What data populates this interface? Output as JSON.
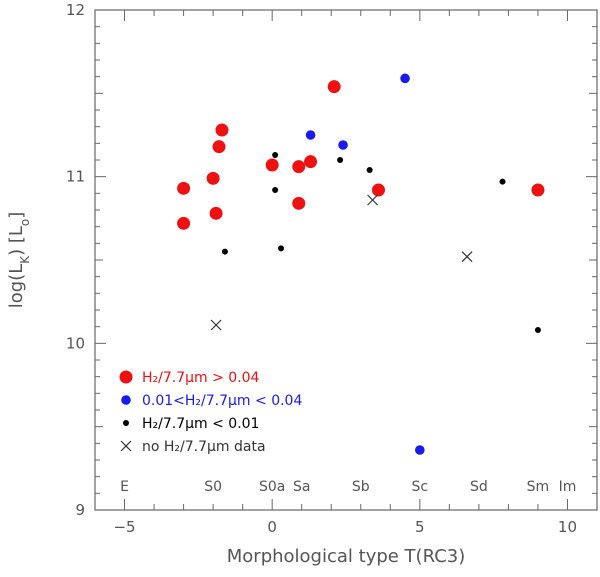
{
  "chart_data": {
    "type": "scatter",
    "xlabel": "Morphological type T(RC3)",
    "ylabel": "log(L_K) [L_o]",
    "xlim": [
      -6,
      11
    ],
    "ylim": [
      9,
      12
    ],
    "x_ticks": [
      "-5",
      "0",
      "5",
      "10"
    ],
    "y_ticks": [
      "9",
      "10",
      "11",
      "12"
    ],
    "grid": false,
    "legend_position": "bottom-left",
    "type_labels": [
      {
        "t": -5,
        "label": "E"
      },
      {
        "t": -2,
        "label": "S0"
      },
      {
        "t": 0,
        "label": "S0a"
      },
      {
        "t": 1,
        "label": "Sa"
      },
      {
        "t": 3,
        "label": "Sb"
      },
      {
        "t": 5,
        "label": "Sc"
      },
      {
        "t": 7,
        "label": "Sd"
      },
      {
        "t": 9,
        "label": "Sm"
      },
      {
        "t": 10,
        "label": "Im"
      }
    ],
    "series": [
      {
        "label_main": "H₂/7.7μm > 0.04",
        "marker": "large-circle",
        "color": "#ee1111",
        "points": [
          [
            -3.0,
            10.93
          ],
          [
            -3.0,
            10.72
          ],
          [
            -2.0,
            10.99
          ],
          [
            -1.9,
            10.78
          ],
          [
            -1.8,
            11.18
          ],
          [
            -1.7,
            11.28
          ],
          [
            0.0,
            11.07
          ],
          [
            0.9,
            11.06
          ],
          [
            0.9,
            10.84
          ],
          [
            1.3,
            11.09
          ],
          [
            2.1,
            11.54
          ],
          [
            3.6,
            10.92
          ],
          [
            9.0,
            10.92
          ]
        ]
      },
      {
        "label_main": "0.01<H₂/7.7μm < 0.04",
        "marker": "medium-circle",
        "color": "#1a1aee",
        "points": [
          [
            1.3,
            11.25
          ],
          [
            2.4,
            11.19
          ],
          [
            4.5,
            11.59
          ],
          [
            5.0,
            9.36
          ]
        ]
      },
      {
        "label_main": "H₂/7.7μm < 0.01",
        "marker": "small-dot",
        "color": "#000000",
        "points": [
          [
            -1.6,
            10.55
          ],
          [
            0.1,
            11.13
          ],
          [
            0.1,
            10.92
          ],
          [
            0.3,
            10.57
          ],
          [
            2.3,
            11.1
          ],
          [
            3.3,
            11.04
          ],
          [
            7.8,
            10.97
          ],
          [
            9.0,
            10.08
          ]
        ]
      },
      {
        "label_main": "no H₂/7.7μm data",
        "marker": "cross",
        "color": "#333333",
        "points": [
          [
            -1.9,
            10.11
          ],
          [
            3.4,
            10.86
          ],
          [
            6.6,
            10.52
          ]
        ]
      }
    ]
  }
}
